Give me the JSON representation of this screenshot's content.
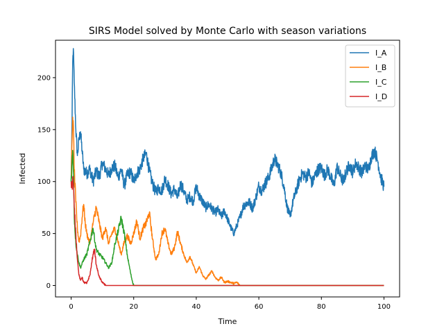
{
  "chart_data": {
    "type": "line",
    "title": "SIRS Model solved by Monte Carlo with season variations",
    "xlabel": "Time",
    "ylabel": "Infected",
    "xlim": [
      -5,
      105
    ],
    "ylim": [
      -11,
      236
    ],
    "xticks": [
      0,
      20,
      40,
      60,
      80,
      100
    ],
    "yticks": [
      0,
      50,
      100,
      150,
      200
    ],
    "grid": false,
    "legend_position": "top-right",
    "series": [
      {
        "name": "I_A",
        "color": "#1f77b4",
        "points": [
          [
            0,
            100
          ],
          [
            0.3,
            160
          ],
          [
            0.5,
            215
          ],
          [
            0.7,
            228
          ],
          [
            1,
            195
          ],
          [
            1.5,
            150
          ],
          [
            2,
            125
          ],
          [
            2.5,
            140
          ],
          [
            3,
            148
          ],
          [
            3.5,
            130
          ],
          [
            4,
            112
          ],
          [
            5,
            108
          ],
          [
            6,
            112
          ],
          [
            7,
            100
          ],
          [
            8,
            110
          ],
          [
            9,
            105
          ],
          [
            10,
            118
          ],
          [
            11,
            112
          ],
          [
            12,
            106
          ],
          [
            13,
            113
          ],
          [
            14,
            115
          ],
          [
            15,
            104
          ],
          [
            16,
            112
          ],
          [
            17,
            96
          ],
          [
            18,
            107
          ],
          [
            19,
            109
          ],
          [
            20,
            100
          ],
          [
            21,
            108
          ],
          [
            22,
            112
          ],
          [
            23,
            122
          ],
          [
            24,
            127
          ],
          [
            25,
            110
          ],
          [
            26,
            98
          ],
          [
            27,
            90
          ],
          [
            28,
            94
          ],
          [
            29,
            91
          ],
          [
            30,
            103
          ],
          [
            31,
            96
          ],
          [
            32,
            88
          ],
          [
            33,
            93
          ],
          [
            34,
            84
          ],
          [
            35,
            98
          ],
          [
            36,
            91
          ],
          [
            37,
            82
          ],
          [
            38,
            86
          ],
          [
            39,
            81
          ],
          [
            40,
            95
          ],
          [
            41,
            86
          ],
          [
            42,
            81
          ],
          [
            43,
            75
          ],
          [
            44,
            78
          ],
          [
            45,
            74
          ],
          [
            46,
            70
          ],
          [
            47,
            73
          ],
          [
            48,
            66
          ],
          [
            49,
            72
          ],
          [
            50,
            64
          ],
          [
            51,
            56
          ],
          [
            52,
            50
          ],
          [
            53,
            58
          ],
          [
            54,
            66
          ],
          [
            55,
            76
          ],
          [
            56,
            79
          ],
          [
            57,
            80
          ],
          [
            58,
            74
          ],
          [
            59,
            84
          ],
          [
            60,
            96
          ],
          [
            61,
            91
          ],
          [
            62,
            98
          ],
          [
            63,
            103
          ],
          [
            64,
            112
          ],
          [
            65,
            122
          ],
          [
            66,
            116
          ],
          [
            67,
            109
          ],
          [
            68,
            96
          ],
          [
            69,
            76
          ],
          [
            70,
            66
          ],
          [
            71,
            82
          ],
          [
            72,
            92
          ],
          [
            73,
            102
          ],
          [
            74,
            108
          ],
          [
            75,
            104
          ],
          [
            76,
            109
          ],
          [
            77,
            98
          ],
          [
            78,
            106
          ],
          [
            79,
            112
          ],
          [
            80,
            113
          ],
          [
            81,
            106
          ],
          [
            82,
            112
          ],
          [
            83,
            104
          ],
          [
            84,
            96
          ],
          [
            85,
            114
          ],
          [
            86,
            106
          ],
          [
            87,
            100
          ],
          [
            88,
            110
          ],
          [
            89,
            116
          ],
          [
            90,
            109
          ],
          [
            91,
            118
          ],
          [
            92,
            113
          ],
          [
            93,
            108
          ],
          [
            94,
            116
          ],
          [
            95,
            111
          ],
          [
            96,
            124
          ],
          [
            97,
            130
          ],
          [
            98,
            120
          ],
          [
            99,
            104
          ],
          [
            100,
            95
          ]
        ]
      },
      {
        "name": "I_B",
        "color": "#ff7f0e",
        "points": [
          [
            0,
            100
          ],
          [
            0.3,
            140
          ],
          [
            0.5,
            162
          ],
          [
            0.8,
            145
          ],
          [
            1,
            110
          ],
          [
            1.5,
            80
          ],
          [
            2,
            55
          ],
          [
            2.5,
            42
          ],
          [
            3,
            48
          ],
          [
            3.5,
            65
          ],
          [
            4,
            78
          ],
          [
            4.5,
            60
          ],
          [
            5,
            50
          ],
          [
            6,
            40
          ],
          [
            7,
            60
          ],
          [
            8,
            75
          ],
          [
            9,
            60
          ],
          [
            10,
            45
          ],
          [
            11,
            56
          ],
          [
            12,
            40
          ],
          [
            13,
            50
          ],
          [
            14,
            55
          ],
          [
            15,
            42
          ],
          [
            16,
            30
          ],
          [
            17,
            42
          ],
          [
            18,
            48
          ],
          [
            19,
            40
          ],
          [
            20,
            50
          ],
          [
            21,
            62
          ],
          [
            22,
            45
          ],
          [
            23,
            55
          ],
          [
            24,
            60
          ],
          [
            25,
            70
          ],
          [
            26,
            45
          ],
          [
            27,
            25
          ],
          [
            28,
            30
          ],
          [
            29,
            50
          ],
          [
            30,
            55
          ],
          [
            31,
            40
          ],
          [
            32,
            30
          ],
          [
            33,
            36
          ],
          [
            34,
            52
          ],
          [
            35,
            40
          ],
          [
            36,
            30
          ],
          [
            37,
            22
          ],
          [
            38,
            28
          ],
          [
            39,
            20
          ],
          [
            40,
            12
          ],
          [
            41,
            18
          ],
          [
            42,
            10
          ],
          [
            43,
            6
          ],
          [
            44,
            10
          ],
          [
            45,
            14
          ],
          [
            46,
            8
          ],
          [
            47,
            5
          ],
          [
            48,
            8
          ],
          [
            49,
            3
          ],
          [
            50,
            4
          ],
          [
            51,
            3
          ],
          [
            52,
            2
          ],
          [
            53,
            3
          ],
          [
            54,
            0
          ],
          [
            100,
            0
          ]
        ]
      },
      {
        "name": "I_C",
        "color": "#2ca02c",
        "points": [
          [
            0,
            100
          ],
          [
            0.3,
            118
          ],
          [
            0.5,
            130
          ],
          [
            0.8,
            105
          ],
          [
            1,
            65
          ],
          [
            1.5,
            40
          ],
          [
            2,
            30
          ],
          [
            2.5,
            22
          ],
          [
            3,
            17
          ],
          [
            4,
            25
          ],
          [
            5,
            30
          ],
          [
            6,
            42
          ],
          [
            7,
            55
          ],
          [
            8,
            35
          ],
          [
            9,
            30
          ],
          [
            10,
            27
          ],
          [
            11,
            22
          ],
          [
            12,
            17
          ],
          [
            13,
            22
          ],
          [
            14,
            40
          ],
          [
            15,
            52
          ],
          [
            16,
            65
          ],
          [
            17,
            50
          ],
          [
            18,
            28
          ],
          [
            19,
            12
          ],
          [
            19.5,
            5
          ],
          [
            20,
            0
          ],
          [
            100,
            0
          ]
        ]
      },
      {
        "name": "I_D",
        "color": "#d62728",
        "points": [
          [
            0,
            100
          ],
          [
            0.3,
            95
          ],
          [
            0.6,
            105
          ],
          [
            1,
            75
          ],
          [
            1.5,
            50
          ],
          [
            2,
            25
          ],
          [
            2.5,
            10
          ],
          [
            3,
            5
          ],
          [
            3.5,
            8
          ],
          [
            4,
            3
          ],
          [
            5,
            2
          ],
          [
            6,
            10
          ],
          [
            7,
            30
          ],
          [
            7.5,
            35
          ],
          [
            8,
            20
          ],
          [
            9,
            8
          ],
          [
            10,
            3
          ],
          [
            11,
            0
          ],
          [
            100,
            0
          ]
        ]
      }
    ]
  }
}
